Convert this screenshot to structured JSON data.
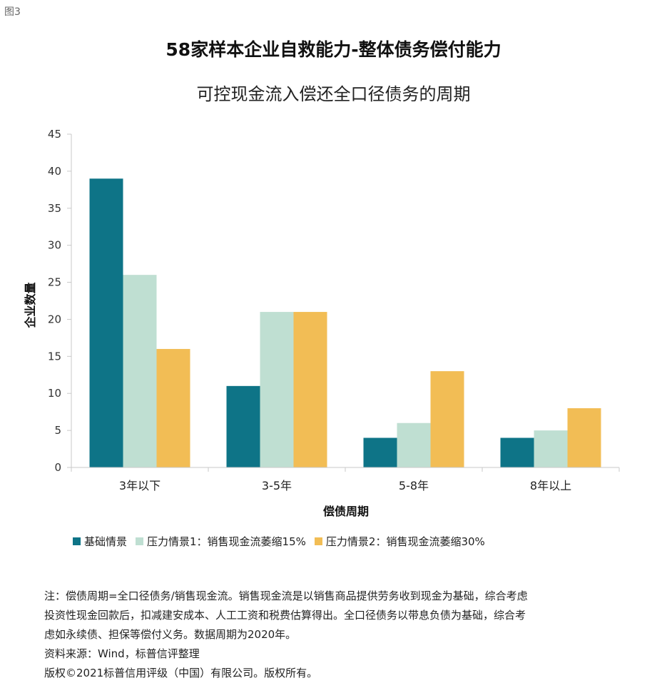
{
  "figure_label": "图3",
  "title": "58家样本企业自救能力-整体债务偿付能力",
  "subtitle": "可控现金流入偿还全口径债务的周期",
  "colors": {
    "series1": "#0e7487",
    "series2": "#bfdfd2",
    "series3": "#f2bd55",
    "axis": "#c8c8c8",
    "text": "#222222"
  },
  "chart_data": {
    "type": "bar",
    "title": "可控现金流入偿还全口径债务的周期",
    "xlabel": "偿债周期",
    "ylabel": "企业数量",
    "ylim": [
      0,
      45
    ],
    "yticks": [
      0,
      5,
      10,
      15,
      20,
      25,
      30,
      35,
      40,
      45
    ],
    "categories": [
      "3年以下",
      "3-5年",
      "5-8年",
      "8年以上"
    ],
    "series": [
      {
        "name": "基础情景",
        "values": [
          39,
          11,
          4,
          4
        ]
      },
      {
        "name": "压力情景1：销售现金流萎缩15%",
        "values": [
          26,
          21,
          6,
          5
        ]
      },
      {
        "name": "压力情景2：销售现金流萎缩30%",
        "values": [
          16,
          21,
          13,
          8
        ]
      }
    ],
    "grid": false,
    "legend_position": "bottom"
  },
  "notes": {
    "line1": "注：偿债周期=全口径债务/销售现金流。销售现金流是以销售商品提供劳务收到现金为基础，综合考虑",
    "line2": "投资性现金回款后，扣减建安成本、人工工资和税费估算得出。全口径债务以带息负债为基础，综合考",
    "line3": "虑如永续债、担保等偿付义务。数据周期为2020年。",
    "source": "资料来源：Wind，标普信评整理",
    "copyright": "版权©2021标普信用评级（中国）有限公司。版权所有。"
  }
}
